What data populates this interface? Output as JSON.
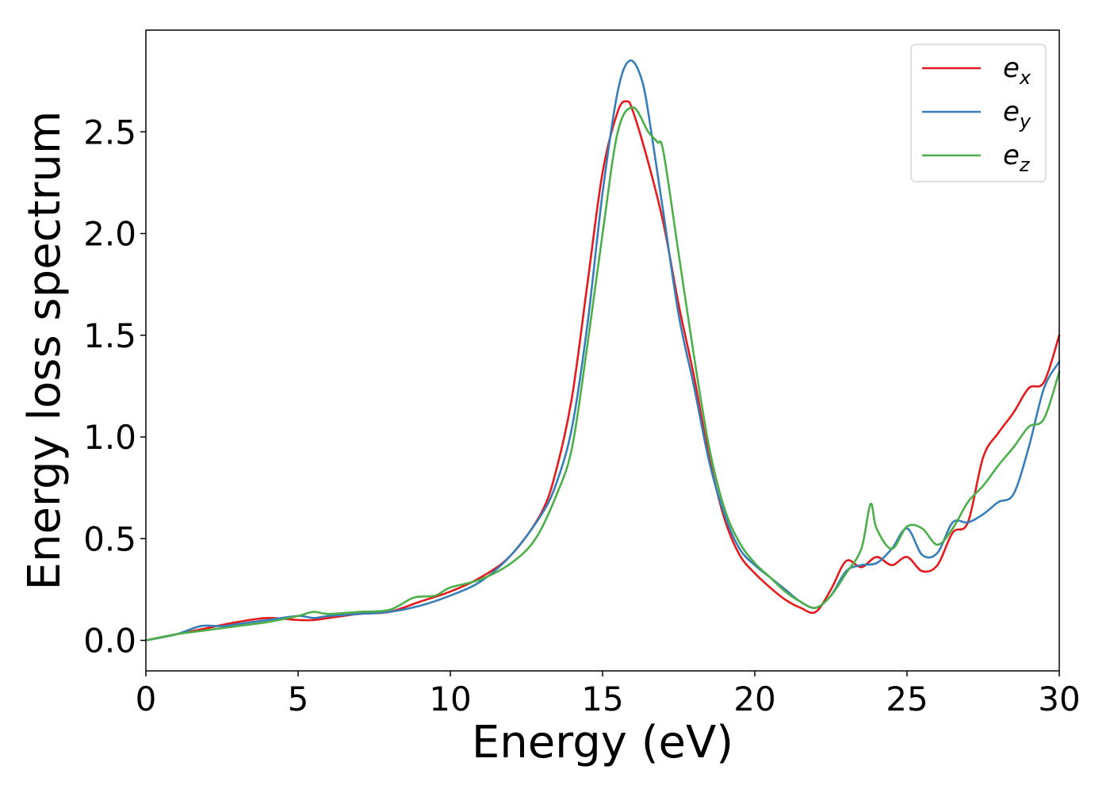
{
  "chart_data": {
    "type": "line",
    "title": "",
    "xlabel": "Energy (eV)",
    "ylabel": "Energy loss spectrum",
    "xlim": [
      0,
      30
    ],
    "ylim": [
      -0.15,
      3.0
    ],
    "xticks": [
      0,
      5,
      10,
      15,
      20,
      25,
      30
    ],
    "xtick_labels": [
      "0",
      "5",
      "10",
      "15",
      "20",
      "25",
      "30"
    ],
    "yticks": [
      0.0,
      0.5,
      1.0,
      1.5,
      2.0,
      2.5
    ],
    "ytick_labels": [
      "0.0",
      "0.5",
      "1.0",
      "1.5",
      "2.0",
      "2.5"
    ],
    "grid": false,
    "legend_position": "top-right",
    "series": [
      {
        "name": "e_x",
        "label_base": "e",
        "label_sub": "x",
        "color": "#e41a1c",
        "x": [
          0,
          1,
          2,
          3,
          4,
          5,
          5.5,
          6,
          7,
          8,
          9,
          10,
          11,
          12,
          13,
          13.5,
          14,
          14.5,
          15,
          15.5,
          15.8,
          16,
          16.5,
          17,
          17.5,
          18,
          18.5,
          19,
          19.5,
          20,
          20.5,
          21,
          21.5,
          22,
          22.5,
          23,
          23.5,
          24,
          24.5,
          25,
          25.5,
          26,
          26.5,
          27,
          27.5,
          28,
          28.5,
          29,
          29.5,
          30
        ],
        "y": [
          0,
          0.03,
          0.06,
          0.09,
          0.11,
          0.1,
          0.1,
          0.11,
          0.13,
          0.14,
          0.19,
          0.24,
          0.31,
          0.42,
          0.63,
          0.85,
          1.2,
          1.75,
          2.3,
          2.6,
          2.65,
          2.6,
          2.35,
          2.05,
          1.65,
          1.3,
          0.9,
          0.6,
          0.42,
          0.33,
          0.26,
          0.2,
          0.16,
          0.14,
          0.25,
          0.39,
          0.36,
          0.41,
          0.37,
          0.41,
          0.34,
          0.37,
          0.53,
          0.58,
          0.9,
          1.02,
          1.12,
          1.24,
          1.27,
          1.5
        ]
      },
      {
        "name": "e_y",
        "label_base": "e",
        "label_sub": "y",
        "color": "#377eb8",
        "x": [
          0,
          1,
          1.8,
          2.5,
          3,
          4,
          5,
          5.5,
          6,
          7,
          8,
          9,
          10,
          11,
          12,
          13,
          13.5,
          14,
          14.5,
          15,
          15.5,
          15.9,
          16.3,
          16.6,
          17,
          17.5,
          18,
          18.5,
          19,
          19.5,
          20,
          20.5,
          21,
          21.5,
          22,
          22.5,
          23,
          23.5,
          24,
          24.5,
          25,
          25.5,
          26,
          26.5,
          27,
          27.5,
          28,
          28.5,
          29,
          29.5,
          30
        ],
        "y": [
          0,
          0.03,
          0.07,
          0.07,
          0.08,
          0.1,
          0.12,
          0.11,
          0.12,
          0.13,
          0.14,
          0.17,
          0.22,
          0.29,
          0.42,
          0.62,
          0.78,
          1.05,
          1.55,
          2.2,
          2.7,
          2.85,
          2.75,
          2.5,
          2.1,
          1.6,
          1.25,
          0.88,
          0.62,
          0.45,
          0.37,
          0.31,
          0.25,
          0.19,
          0.16,
          0.22,
          0.34,
          0.37,
          0.38,
          0.45,
          0.55,
          0.42,
          0.43,
          0.58,
          0.58,
          0.62,
          0.68,
          0.72,
          0.95,
          1.24,
          1.37
        ]
      },
      {
        "name": "e_z",
        "label_base": "e",
        "label_sub": "z",
        "color": "#4daf4a",
        "x": [
          0,
          1,
          2,
          3,
          4,
          5,
          5.5,
          6,
          7,
          8,
          8.8,
          9.5,
          10,
          11,
          12,
          12.8,
          13.5,
          14,
          14.5,
          15,
          15.5,
          16,
          16.5,
          16.8,
          17,
          17.5,
          18,
          18.5,
          19,
          19.5,
          20,
          20.5,
          21,
          21.5,
          22,
          22.5,
          23,
          23.5,
          23.8,
          24,
          24.5,
          25,
          25.5,
          26,
          26.5,
          27,
          27.5,
          28,
          28.5,
          29,
          29.5,
          30
        ],
        "y": [
          0,
          0.03,
          0.05,
          0.07,
          0.09,
          0.12,
          0.14,
          0.13,
          0.14,
          0.15,
          0.21,
          0.22,
          0.26,
          0.3,
          0.38,
          0.5,
          0.72,
          0.95,
          1.45,
          2.0,
          2.5,
          2.62,
          2.5,
          2.45,
          2.4,
          1.9,
          1.4,
          0.95,
          0.65,
          0.48,
          0.38,
          0.31,
          0.24,
          0.19,
          0.16,
          0.22,
          0.33,
          0.45,
          0.67,
          0.55,
          0.45,
          0.56,
          0.55,
          0.47,
          0.55,
          0.68,
          0.76,
          0.86,
          0.95,
          1.05,
          1.09,
          1.32
        ]
      }
    ]
  }
}
